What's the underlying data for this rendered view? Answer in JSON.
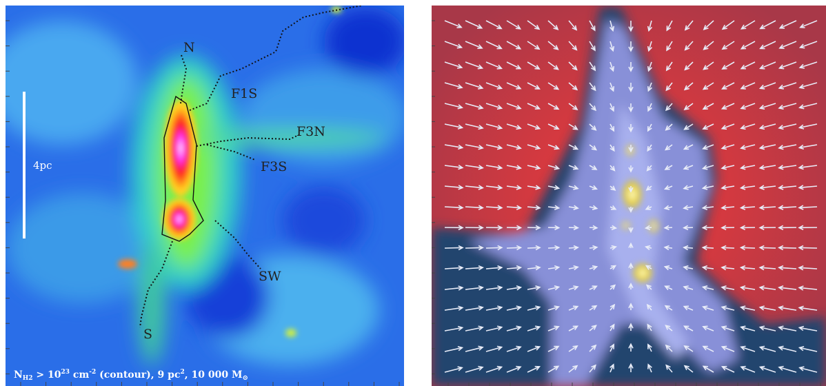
{
  "left_panel": {
    "labels": [
      "N",
      "F1S",
      "F3N",
      "F3S",
      "SW",
      "S"
    ],
    "scale_bar": "4pc",
    "caption": [
      "N",
      "H2",
      " > 10",
      "23",
      " cm",
      "-2",
      " (contour), 9 pc",
      "2",
      ", 10 000 M",
      "⊙"
    ]
  }
}
